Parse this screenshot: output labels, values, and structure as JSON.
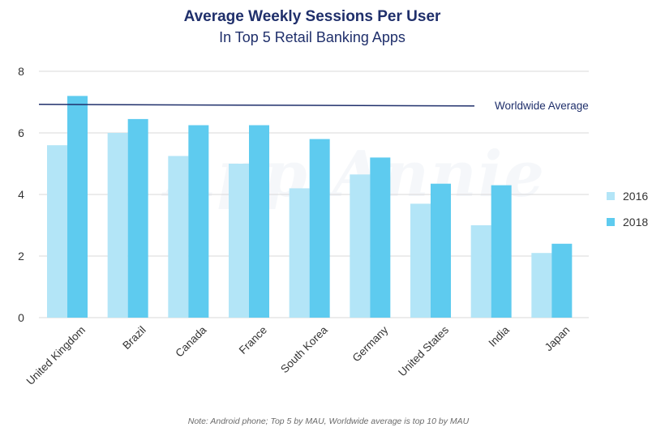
{
  "chart_data": {
    "type": "bar",
    "title": "Average Weekly Sessions Per User",
    "subtitle": "In Top 5 Retail Banking Apps",
    "categories": [
      "United Kingdom",
      "Brazil",
      "Canada",
      "France",
      "South Korea",
      "Germany",
      "United States",
      "India",
      "Japan"
    ],
    "series": [
      {
        "name": "2016",
        "color": "#b3e5f7",
        "values": [
          5.6,
          6.0,
          5.25,
          5.0,
          4.2,
          4.65,
          3.7,
          3.0,
          2.1
        ]
      },
      {
        "name": "2018",
        "color": "#5ecbef",
        "values": [
          7.2,
          6.45,
          6.25,
          6.25,
          5.8,
          5.2,
          4.35,
          4.3,
          2.4
        ]
      }
    ],
    "reference_line": {
      "label": "Worldwide Average",
      "value": 6.9,
      "color": "#1f2f6b"
    },
    "ylim": [
      0,
      8
    ],
    "yticks": [
      "0",
      "2",
      "4",
      "6",
      "8"
    ],
    "xlabel": "",
    "ylabel": "",
    "watermark": "App Annie",
    "note": "Note: Android phone; Top 5 by MAU, Worldwide average is top 10 by MAU"
  }
}
